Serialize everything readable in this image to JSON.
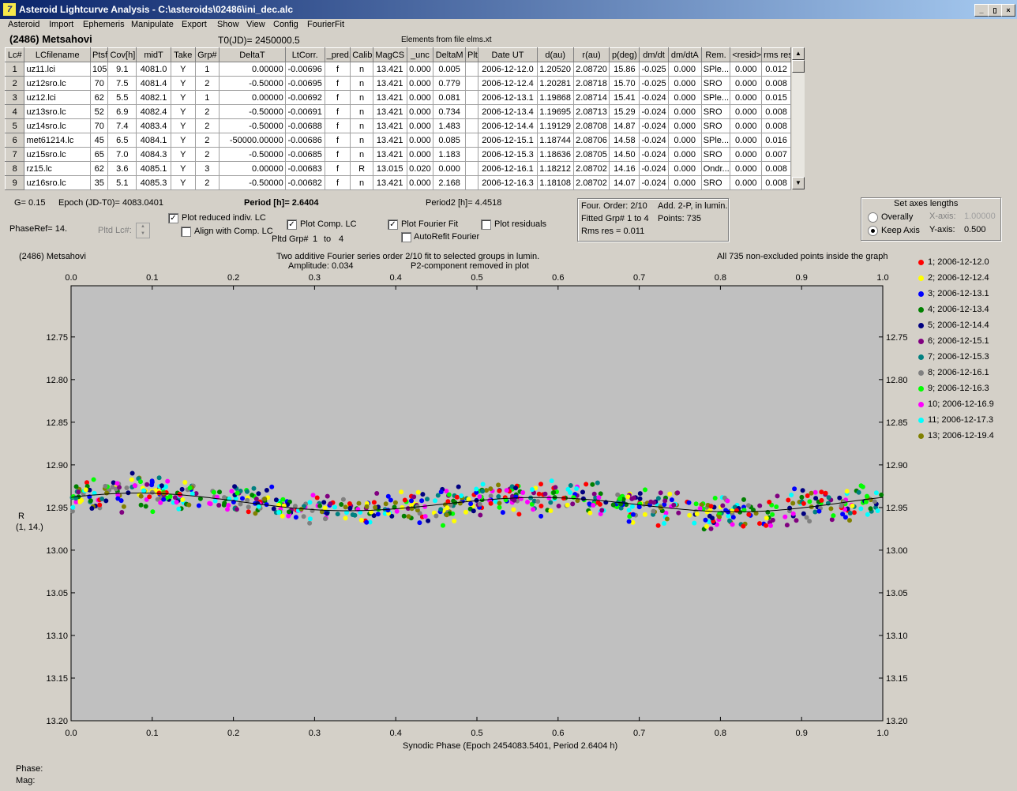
{
  "window": {
    "title": "Asteroid Lightcurve Analysis - C:\\asteroids\\02486\\ini_dec.alc",
    "app_icon": "7",
    "controls": [
      "_",
      "▯",
      "×"
    ]
  },
  "menu": [
    "Asteroid",
    "Import",
    "Ephemeris",
    "Manipulate",
    "Export",
    "Show",
    "View",
    "Config",
    "FourierFit"
  ],
  "header": {
    "asteroid_name": "(2486) Metsahovi",
    "t0": "T0(JD)= 2450000.5",
    "elements": "Elements from file elms.xt"
  },
  "table": {
    "columns": [
      "Lc#",
      "LCfilename",
      "Ptsf",
      "Cov[h]",
      "midT",
      "Take",
      "Grp#",
      "DeltaT",
      "LtCorr.",
      "_pred.",
      "Calib.",
      "MagCS",
      "_unc",
      "DeltaM",
      "Plt",
      "Date UT",
      "d(au)",
      "r(au)",
      "p(deg)",
      "dm/dt",
      "dm/dtA",
      "Rem.",
      "<resid>",
      "rms res"
    ],
    "rows": [
      [
        "1",
        "uz11.lci",
        "105",
        "9.1",
        "4081.0",
        "Y",
        "1",
        "0.00000",
        "-0.00696",
        "f",
        "n",
        "13.421",
        "0.000",
        "0.005",
        "",
        "2006-12-12.0",
        "1.20520",
        "2.08720",
        "15.86",
        "-0.025",
        "0.000",
        "SPle...",
        "0.000",
        "0.012"
      ],
      [
        "2",
        "uz12sro.lc",
        "70",
        "7.5",
        "4081.4",
        "Y",
        "2",
        "-0.50000",
        "-0.00695",
        "f",
        "n",
        "13.421",
        "0.000",
        "0.779",
        "",
        "2006-12-12.4",
        "1.20281",
        "2.08718",
        "15.70",
        "-0.025",
        "0.000",
        "SRO",
        "0.000",
        "0.008"
      ],
      [
        "3",
        "uz12.lci",
        "62",
        "5.5",
        "4082.1",
        "Y",
        "1",
        "0.00000",
        "-0.00692",
        "f",
        "n",
        "13.421",
        "0.000",
        "0.081",
        "",
        "2006-12-13.1",
        "1.19868",
        "2.08714",
        "15.41",
        "-0.024",
        "0.000",
        "SPle...",
        "0.000",
        "0.015"
      ],
      [
        "4",
        "uz13sro.lc",
        "52",
        "6.9",
        "4082.4",
        "Y",
        "2",
        "-0.50000",
        "-0.00691",
        "f",
        "n",
        "13.421",
        "0.000",
        "0.734",
        "",
        "2006-12-13.4",
        "1.19695",
        "2.08713",
        "15.29",
        "-0.024",
        "0.000",
        "SRO",
        "0.000",
        "0.008"
      ],
      [
        "5",
        "uz14sro.lc",
        "70",
        "7.4",
        "4083.4",
        "Y",
        "2",
        "-0.50000",
        "-0.00688",
        "f",
        "n",
        "13.421",
        "0.000",
        "1.483",
        "",
        "2006-12-14.4",
        "1.19129",
        "2.08708",
        "14.87",
        "-0.024",
        "0.000",
        "SRO",
        "0.000",
        "0.008"
      ],
      [
        "6",
        "met61214.lc",
        "45",
        "6.5",
        "4084.1",
        "Y",
        "2",
        "-50000.00000",
        "-0.00686",
        "f",
        "n",
        "13.421",
        "0.000",
        "0.085",
        "",
        "2006-12-15.1",
        "1.18744",
        "2.08706",
        "14.58",
        "-0.024",
        "0.000",
        "SPle...",
        "0.000",
        "0.016"
      ],
      [
        "7",
        "uz15sro.lc",
        "65",
        "7.0",
        "4084.3",
        "Y",
        "2",
        "-0.50000",
        "-0.00685",
        "f",
        "n",
        "13.421",
        "0.000",
        "1.183",
        "",
        "2006-12-15.3",
        "1.18636",
        "2.08705",
        "14.50",
        "-0.024",
        "0.000",
        "SRO",
        "0.000",
        "0.007"
      ],
      [
        "8",
        "rz15.lc",
        "62",
        "3.6",
        "4085.1",
        "Y",
        "3",
        "0.00000",
        "-0.00683",
        "f",
        "R",
        "13.015",
        "0.020",
        "0.000",
        "",
        "2006-12-16.1",
        "1.18212",
        "2.08702",
        "14.16",
        "-0.024",
        "0.000",
        "Ondr...",
        "0.000",
        "0.008"
      ],
      [
        "9",
        "uz16sro.lc",
        "35",
        "5.1",
        "4085.3",
        "Y",
        "2",
        "-0.50000",
        "-0.00682",
        "f",
        "n",
        "13.421",
        "0.000",
        "2.168",
        "",
        "2006-12-16.3",
        "1.18108",
        "2.08702",
        "14.07",
        "-0.024",
        "0.000",
        "SRO",
        "0.000",
        "0.008"
      ]
    ]
  },
  "params": {
    "g": "G= 0.15",
    "epoch": "Epoch (JD-T0)= 4083.0401",
    "period": "Period [h]= 2.6404",
    "period2": "Period2 [h]= 4.4518",
    "phaseref": "PhaseRef= 14.",
    "pltd_lc": "Pltd Lc#:"
  },
  "options": {
    "plot_reduced": "Plot reduced indiv. LC",
    "align_comp": "Align with Comp. LC",
    "plot_comp": "Plot Comp. LC",
    "pltd_grp": "Pltd Grp#",
    "grp_from": "1",
    "grp_to_label": "to",
    "grp_to": "4",
    "plot_fourier": "Plot Fourier Fit",
    "autorefit": "AutoRefit Fourier",
    "plot_residuals": "Plot residuals"
  },
  "fourier_info": {
    "order": "Four. Order:  2/10",
    "add": "Add. 2-P, in lumin.",
    "fitted": "Fitted Grp# 1 to 4",
    "points": "Points: 735",
    "rms": "Rms res     = 0.011"
  },
  "axes_box": {
    "title": "Set axes lengths",
    "overally": "Overally",
    "keep": "Keep Axis",
    "xaxis_label": "X-axis:",
    "xaxis_value": "1.00000",
    "yaxis_label": "Y-axis:",
    "yaxis_value": "0.500"
  },
  "plot": {
    "left_title": "(2486) Metsahovi",
    "center_title_1": "Two additive Fourier series order 2/10 fit to selected groups in lumin.",
    "center_title_2a": "Amplitude: 0.034",
    "center_title_2b": "P2-component removed in plot",
    "right_title": "All 735 non-excluded points inside the graph",
    "ylabel_1": "R",
    "ylabel_2": "(1, 14.)",
    "xlabel": "Synodic Phase (Epoch 2454083.5401, Period 2.6404 h)"
  },
  "chart_data": {
    "type": "scatter",
    "x_ticks": [
      "0.0",
      "0.1",
      "0.2",
      "0.3",
      "0.4",
      "0.5",
      "0.6",
      "0.7",
      "0.8",
      "0.9",
      "1.0"
    ],
    "y_ticks": [
      "12.75",
      "12.80",
      "12.85",
      "12.90",
      "12.95",
      "13.00",
      "13.05",
      "13.10",
      "13.15",
      "13.20"
    ],
    "xlim": [
      0,
      1
    ],
    "ylim": [
      12.69,
      13.2
    ],
    "y_inverted": true,
    "fit_mean": 12.945,
    "fit_amplitude": 0.034,
    "series": [
      {
        "name": "1; 2006-12-12.0",
        "color": "#ff0000"
      },
      {
        "name": "2; 2006-12-12.4",
        "color": "#ffff00"
      },
      {
        "name": "3; 2006-12-13.1",
        "color": "#0000ff"
      },
      {
        "name": "4; 2006-12-13.4",
        "color": "#008000"
      },
      {
        "name": "5; 2006-12-14.4",
        "color": "#000080"
      },
      {
        "name": "6; 2006-12-15.1",
        "color": "#800080"
      },
      {
        "name": "7; 2006-12-15.3",
        "color": "#008080"
      },
      {
        "name": "8; 2006-12-16.1",
        "color": "#808080"
      },
      {
        "name": "9; 2006-12-16.3",
        "color": "#00ff00"
      },
      {
        "name": "10; 2006-12-16.9",
        "color": "#ff00ff"
      },
      {
        "name": "11; 2006-12-17.3",
        "color": "#00ffff"
      },
      {
        "name": "13; 2006-12-19.4",
        "color": "#808000"
      }
    ]
  },
  "status": {
    "phase": "Phase:",
    "mag": "Mag:"
  }
}
